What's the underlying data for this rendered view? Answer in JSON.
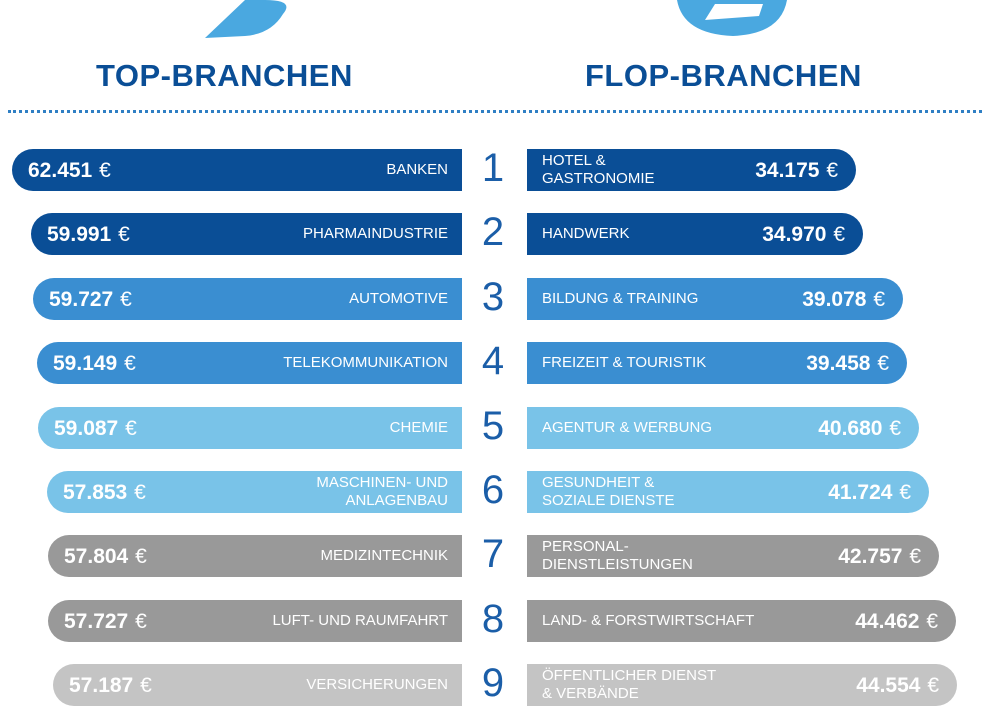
{
  "headings": {
    "top": "TOP-BRANCHEN",
    "flop": "FLOP-BRANCHEN"
  },
  "icons": {
    "left": "thumbs-up-icon",
    "right": "thumbs-down-icon"
  },
  "colors": {
    "dark_blue": "#0a4e96",
    "mid_blue": "#3a8ed1",
    "light_blue": "#79c3e8",
    "dark_gray": "#999999",
    "light_gray": "#c4c4c4"
  },
  "chart_data": {
    "type": "bar",
    "ranks": [
      "1",
      "2",
      "3",
      "4",
      "5",
      "6",
      "7",
      "8",
      "9"
    ],
    "top": {
      "title": "TOP-BRANCHEN",
      "categories": [
        "BANKEN",
        "PHARMAINDUSTRIE",
        "AUTOMOTIVE",
        "TELEKOMMUNIKATION",
        "CHEMIE",
        "MASCHINEN- UND\nANLAGENBAU",
        "MEDIZINTECHNIK",
        "LUFT- UND RAUMFAHRT",
        "VERSICHERUNGEN"
      ],
      "values": [
        62451,
        59991,
        59727,
        59149,
        59087,
        57853,
        57804,
        57727,
        57187
      ],
      "value_labels": [
        "62.451",
        "59.991",
        "59.727",
        "59.149",
        "59.087",
        "57.853",
        "57.804",
        "57.727",
        "57.187"
      ],
      "unit": "€"
    },
    "flop": {
      "title": "FLOP-BRANCHEN",
      "categories": [
        "HOTEL &\nGASTRONOMIE",
        "HANDWERK",
        "BILDUNG & TRAINING",
        "FREIZEIT & TOURISTIK",
        "AGENTUR & WERBUNG",
        "GESUNDHEIT &\nSOZIALE DIENSTE",
        "PERSONAL-\nDIENSTLEISTUNGEN",
        "LAND- & FORSTWIRTSCHAFT",
        "ÖFFENTLICHER DIENST\n& VERBÄNDE"
      ],
      "values": [
        34175,
        34970,
        39078,
        39458,
        40680,
        41724,
        42757,
        44462,
        44554
      ],
      "value_labels": [
        "34.175",
        "34.970",
        "39.078",
        "39.458",
        "40.680",
        "41.724",
        "42.757",
        "44.462",
        "44.554"
      ],
      "unit": "€"
    },
    "bar_colors": [
      "#0a4e96",
      "#0a4e96",
      "#3a8ed1",
      "#3a8ed1",
      "#79c3e8",
      "#79c3e8",
      "#999999",
      "#999999",
      "#c4c4c4"
    ]
  }
}
